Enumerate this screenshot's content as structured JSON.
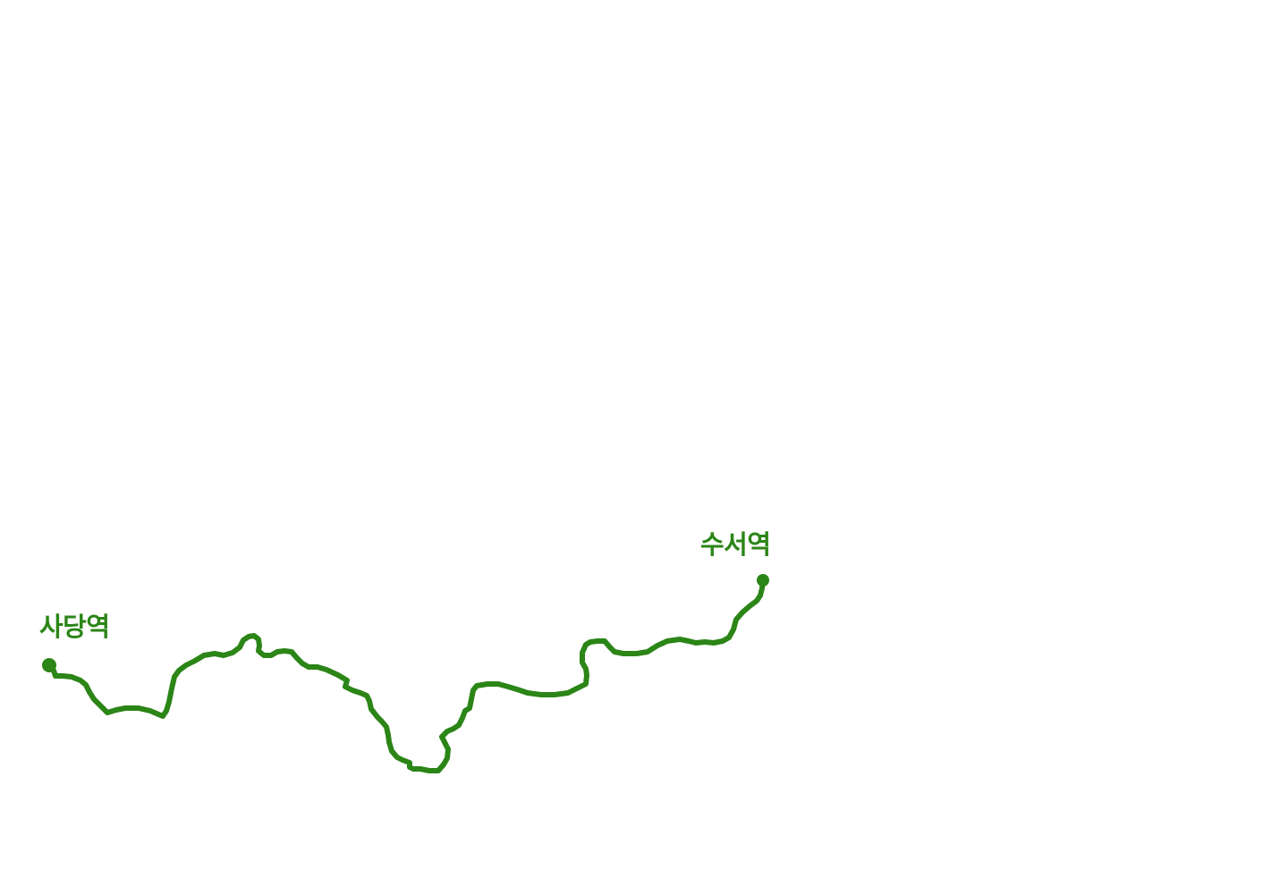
{
  "route": {
    "color": "#2b8517",
    "start_station": {
      "name": "사당역",
      "marker": "station-dot"
    },
    "end_station": {
      "name": "수서역",
      "marker": "station-dot"
    }
  }
}
